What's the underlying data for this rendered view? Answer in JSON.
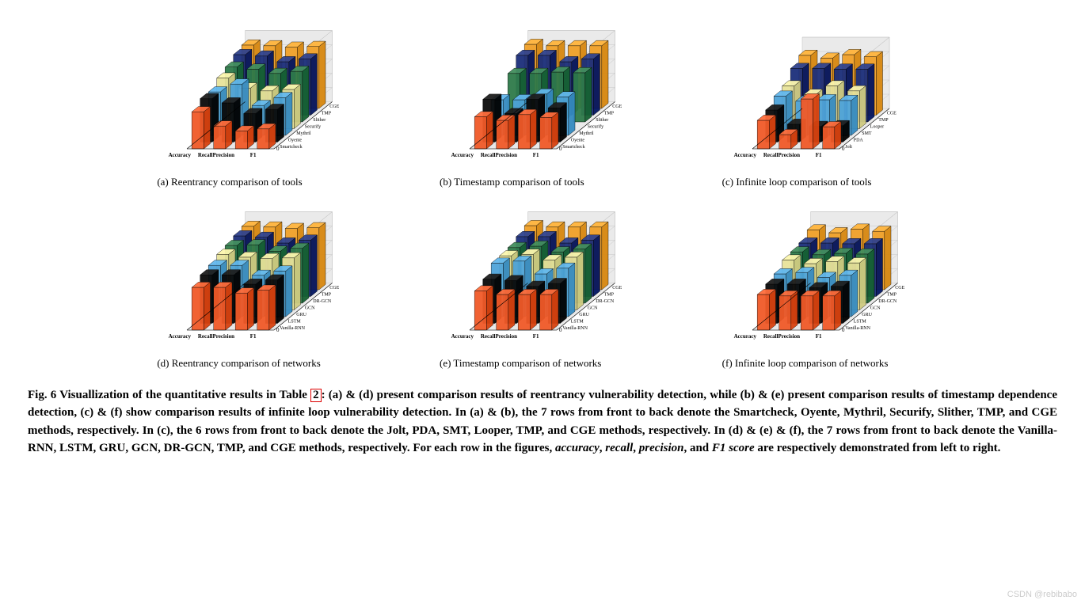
{
  "figure_number": "Fig. 6",
  "caption_prefix": "Visuallization of the quantitative results in Table",
  "table_ref": "2",
  "caption_body": ": (a) & (d) present comparison results of reentrancy vulnerability detection, while (b) & (e) present comparison results of timestamp dependence detection, (c) & (f) show comparison results of infinite loop vulnerability detection. In (a) & (b), the 7 rows from front to back denote the Smartcheck, Oyente, Mythril, Securify, Slither, TMP, and CGE methods, respectively. In (c), the 6 rows from front to back denote the Jolt, PDA, SMT, Looper, TMP, and CGE methods, respectively. In (d) & (e) & (f), the 7 rows from front to back denote the Vanilla-RNN, LSTM, GRU, GCN, DR-GCN, TMP, and CGE methods, respectively. For each row in the figures, ",
  "caption_metrics": [
    "accuracy",
    "recall",
    "precision",
    "F1 score"
  ],
  "caption_tail": " are respectively demonstrated from left to right.",
  "watermark": "CSDN @rebibabo",
  "chart_style": {
    "type": "3d-bar",
    "background_color": "#ffffff",
    "floor_color": "#e8e8e8",
    "wall_color": "#eaeaea",
    "grid_color": "#bfbfbf",
    "edge_color": "#000000",
    "xlabels": [
      "Accuracy",
      "Recall",
      "Precision",
      "F1"
    ],
    "zlabel": "%",
    "zlim": [
      0,
      100
    ],
    "ztick_step": 20,
    "zticks": [
      0,
      20,
      40,
      60,
      80,
      100
    ],
    "bar_opacity": 0.95,
    "label_fontsize": 7,
    "tick_fontsize": 7
  },
  "charts": [
    {
      "id": "a",
      "subcaption": "(a) Reentrancy comparison of tools",
      "methods": [
        "Smartcheck",
        "Oyente",
        "Mythril",
        "Securify",
        "Slither",
        "TMP",
        "CGE"
      ],
      "colors": [
        "#f05a28",
        "#0a0a0a",
        "#4ea3d9",
        "#e8e39a",
        "#2e7a4a",
        "#1b2e7a",
        "#f0a028"
      ],
      "data": [
        [
          52,
          32,
          25,
          28
        ],
        [
          61,
          55,
          40,
          46
        ],
        [
          61,
          72,
          42,
          53
        ],
        [
          71,
          57,
          53,
          55
        ],
        [
          77,
          74,
          68,
          71
        ],
        [
          85,
          83,
          75,
          79
        ],
        [
          89,
          88,
          86,
          87
        ]
      ]
    },
    {
      "id": "b",
      "subcaption": "(b) Timestamp comparison of tools",
      "methods": [
        "Smartcheck",
        "Oyente",
        "Mythril",
        "Securify",
        "Slither",
        "TMP",
        "CGE"
      ],
      "colors": [
        "#f05a28",
        "#0a0a0a",
        "#4ea3d9",
        "#e8e39a",
        "#2e7a4a",
        "#1b2e7a",
        "#f0a028"
      ],
      "data": [
        [
          45,
          40,
          48,
          44
        ],
        [
          60,
          40,
          60,
          48
        ],
        [
          50,
          50,
          58,
          54
        ],
        [
          0,
          0,
          0,
          0
        ],
        [
          68,
          68,
          70,
          69
        ],
        [
          84,
          84,
          75,
          79
        ],
        [
          90,
          88,
          88,
          88
        ]
      ]
    },
    {
      "id": "c",
      "subcaption": "(c) Infinite loop comparison of tools",
      "methods": [
        "Jolt",
        "PDA",
        "SMT",
        "Looper",
        "TMP",
        "CGE"
      ],
      "colors": [
        "#f05a28",
        "#0a0a0a",
        "#4ea3d9",
        "#e8e39a",
        "#1b2e7a",
        "#f0a028"
      ],
      "data": [
        [
          40,
          20,
          70,
          31
        ],
        [
          45,
          25,
          22,
          23
        ],
        [
          55,
          48,
          50,
          49
        ],
        [
          60,
          48,
          60,
          53
        ],
        [
          75,
          75,
          74,
          74
        ],
        [
          84,
          80,
          85,
          82
        ]
      ]
    },
    {
      "id": "d",
      "subcaption": "(d) Reentrancy comparison of networks",
      "methods": [
        "Vanilla-RNN",
        "LSTM",
        "GRU",
        "GCN",
        "DR-GCN",
        "TMP",
        "CGE"
      ],
      "colors": [
        "#f05a28",
        "#0a0a0a",
        "#4ea3d9",
        "#e8e39a",
        "#2e7a4a",
        "#1b2e7a",
        "#f0a028"
      ],
      "data": [
        [
          60,
          60,
          52,
          56
        ],
        [
          68,
          68,
          55,
          61
        ],
        [
          72,
          72,
          58,
          64
        ],
        [
          78,
          74,
          72,
          73
        ],
        [
          81,
          82,
          73,
          77
        ],
        [
          85,
          83,
          75,
          79
        ],
        [
          89,
          88,
          86,
          87
        ]
      ]
    },
    {
      "id": "e",
      "subcaption": "(e) Timestamp comparison of networks",
      "methods": [
        "Vanilla-RNN",
        "LSTM",
        "GRU",
        "GCN",
        "DR-GCN",
        "TMP",
        "CGE"
      ],
      "colors": [
        "#f05a28",
        "#0a0a0a",
        "#4ea3d9",
        "#e8e39a",
        "#2e7a4a",
        "#1b2e7a",
        "#f0a028"
      ],
      "data": [
        [
          55,
          50,
          50,
          50
        ],
        [
          62,
          60,
          52,
          56
        ],
        [
          75,
          78,
          60,
          68
        ],
        [
          76,
          78,
          70,
          74
        ],
        [
          78,
          80,
          72,
          76
        ],
        [
          84,
          84,
          75,
          79
        ],
        [
          90,
          88,
          88,
          88
        ]
      ]
    },
    {
      "id": "f",
      "subcaption": "(f) Infinite loop comparison of networks",
      "methods": [
        "Vanilla-RNN",
        "LSTM",
        "GRU",
        "GCN",
        "DR-GCN",
        "TMP",
        "CGE"
      ],
      "colors": [
        "#f05a28",
        "#0a0a0a",
        "#4ea3d9",
        "#e8e39a",
        "#2e7a4a",
        "#1b2e7a",
        "#f0a028"
      ],
      "data": [
        [
          50,
          48,
          48,
          48
        ],
        [
          55,
          55,
          50,
          52
        ],
        [
          60,
          62,
          55,
          58
        ],
        [
          70,
          65,
          68,
          66
        ],
        [
          72,
          68,
          70,
          69
        ],
        [
          75,
          75,
          74,
          74
        ],
        [
          84,
          80,
          85,
          82
        ]
      ]
    }
  ]
}
